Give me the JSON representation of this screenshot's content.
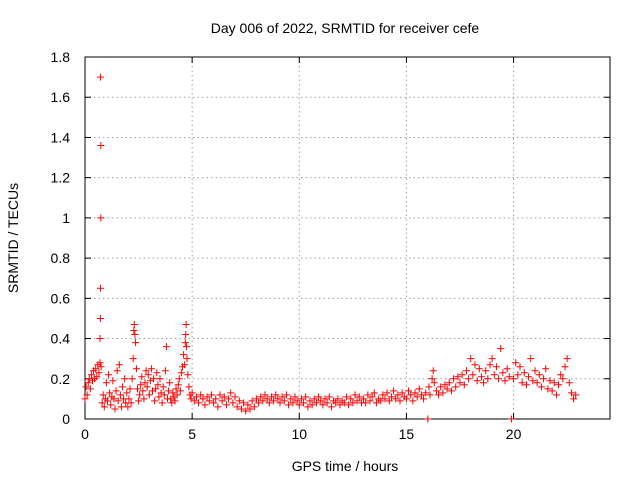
{
  "chart_data": {
    "type": "scatter",
    "title": "Day 006 of 2022, SRMTID for receiver cefe",
    "xlabel": "GPS time / hours",
    "ylabel": "SRMTID / TECUs",
    "xlim": [
      0,
      24.5
    ],
    "ylim": [
      0,
      1.8
    ],
    "x_ticks": [
      "0",
      "5",
      "10",
      "15",
      "20"
    ],
    "x_tick_values": [
      0,
      5,
      10,
      15,
      20
    ],
    "y_ticks": [
      "0",
      "0.2",
      "0.4",
      "0.6",
      "0.8",
      "1",
      "1.2",
      "1.4",
      "1.6",
      "1.8"
    ],
    "y_tick_values": [
      0,
      0.2,
      0.4,
      0.6,
      0.8,
      1.0,
      1.2,
      1.4,
      1.6,
      1.8
    ],
    "grid": true,
    "marker": "plus",
    "color": "#ff0000",
    "series": [
      {
        "name": "SRMTID",
        "points": [
          [
            0.0,
            0.1
          ],
          [
            0.05,
            0.16
          ],
          [
            0.1,
            0.12
          ],
          [
            0.15,
            0.18
          ],
          [
            0.2,
            0.2
          ],
          [
            0.25,
            0.15
          ],
          [
            0.3,
            0.22
          ],
          [
            0.35,
            0.19
          ],
          [
            0.4,
            0.24
          ],
          [
            0.45,
            0.2
          ],
          [
            0.5,
            0.25
          ],
          [
            0.55,
            0.21
          ],
          [
            0.6,
            0.27
          ],
          [
            0.65,
            0.23
          ],
          [
            0.7,
            0.28
          ],
          [
            0.75,
            0.26
          ],
          [
            0.72,
            1.7
          ],
          [
            0.74,
            1.36
          ],
          [
            0.74,
            1.0
          ],
          [
            0.72,
            0.65
          ],
          [
            0.72,
            0.5
          ],
          [
            0.7,
            0.4
          ],
          [
            0.8,
            0.08
          ],
          [
            0.85,
            0.12
          ],
          [
            0.9,
            0.06
          ],
          [
            0.95,
            0.1
          ],
          [
            1.0,
            0.18
          ],
          [
            1.05,
            0.09
          ],
          [
            1.1,
            0.22
          ],
          [
            1.15,
            0.13
          ],
          [
            1.2,
            0.07
          ],
          [
            1.25,
            0.11
          ],
          [
            1.3,
            0.19
          ],
          [
            1.35,
            0.1
          ],
          [
            1.4,
            0.05
          ],
          [
            1.45,
            0.14
          ],
          [
            1.5,
            0.24
          ],
          [
            1.55,
            0.09
          ],
          [
            1.6,
            0.27
          ],
          [
            1.65,
            0.12
          ],
          [
            1.7,
            0.06
          ],
          [
            1.75,
            0.16
          ],
          [
            1.8,
            0.1
          ],
          [
            1.85,
            0.2
          ],
          [
            1.9,
            0.08
          ],
          [
            1.95,
            0.13
          ],
          [
            2.0,
            0.06
          ],
          [
            2.05,
            0.1
          ],
          [
            2.1,
            0.15
          ],
          [
            2.15,
            0.08
          ],
          [
            2.2,
            0.2
          ],
          [
            2.25,
            0.3
          ],
          [
            2.28,
            0.44
          ],
          [
            2.3,
            0.47
          ],
          [
            2.33,
            0.42
          ],
          [
            2.36,
            0.38
          ],
          [
            2.4,
            0.25
          ],
          [
            2.45,
            0.15
          ],
          [
            2.5,
            0.09
          ],
          [
            2.55,
            0.12
          ],
          [
            2.6,
            0.17
          ],
          [
            2.65,
            0.21
          ],
          [
            2.7,
            0.14
          ],
          [
            2.75,
            0.1
          ],
          [
            2.8,
            0.18
          ],
          [
            2.85,
            0.24
          ],
          [
            2.9,
            0.16
          ],
          [
            2.95,
            0.22
          ],
          [
            3.0,
            0.12
          ],
          [
            3.05,
            0.19
          ],
          [
            3.1,
            0.25
          ],
          [
            3.15,
            0.14
          ],
          [
            3.2,
            0.2
          ],
          [
            3.25,
            0.09
          ],
          [
            3.3,
            0.15
          ],
          [
            3.35,
            0.23
          ],
          [
            3.4,
            0.17
          ],
          [
            3.45,
            0.11
          ],
          [
            3.5,
            0.2
          ],
          [
            3.55,
            0.13
          ],
          [
            3.6,
            0.08
          ],
          [
            3.65,
            0.16
          ],
          [
            3.7,
            0.12
          ],
          [
            3.75,
            0.24
          ],
          [
            3.8,
            0.36
          ],
          [
            3.85,
            0.1
          ],
          [
            3.9,
            0.14
          ],
          [
            3.95,
            0.18
          ],
          [
            4.0,
            0.1
          ],
          [
            4.05,
            0.08
          ],
          [
            4.1,
            0.13
          ],
          [
            4.15,
            0.11
          ],
          [
            4.2,
            0.09
          ],
          [
            4.25,
            0.15
          ],
          [
            4.3,
            0.12
          ],
          [
            4.35,
            0.17
          ],
          [
            4.4,
            0.2
          ],
          [
            4.45,
            0.14
          ],
          [
            4.5,
            0.23
          ],
          [
            4.55,
            0.26
          ],
          [
            4.6,
            0.32
          ],
          [
            4.65,
            0.27
          ],
          [
            4.68,
            0.38
          ],
          [
            4.7,
            0.42
          ],
          [
            4.72,
            0.47
          ],
          [
            4.74,
            0.36
          ],
          [
            4.76,
            0.3
          ],
          [
            4.8,
            0.22
          ],
          [
            4.85,
            0.16
          ],
          [
            4.9,
            0.12
          ],
          [
            4.95,
            0.1
          ],
          [
            5.0,
            0.13
          ],
          [
            5.1,
            0.09
          ],
          [
            5.2,
            0.11
          ],
          [
            5.3,
            0.08
          ],
          [
            5.4,
            0.12
          ],
          [
            5.5,
            0.1
          ],
          [
            5.6,
            0.07
          ],
          [
            5.7,
            0.11
          ],
          [
            5.8,
            0.09
          ],
          [
            5.9,
            0.12
          ],
          [
            6.0,
            0.08
          ],
          [
            6.1,
            0.1
          ],
          [
            6.2,
            0.06
          ],
          [
            6.3,
            0.12
          ],
          [
            6.4,
            0.09
          ],
          [
            6.5,
            0.11
          ],
          [
            6.6,
            0.07
          ],
          [
            6.7,
            0.1
          ],
          [
            6.8,
            0.13
          ],
          [
            6.9,
            0.08
          ],
          [
            7.0,
            0.11
          ],
          [
            7.1,
            0.06
          ],
          [
            7.2,
            0.09
          ],
          [
            7.3,
            0.05
          ],
          [
            7.4,
            0.08
          ],
          [
            7.5,
            0.04
          ],
          [
            7.6,
            0.07
          ],
          [
            7.7,
            0.05
          ],
          [
            7.8,
            0.09
          ],
          [
            7.9,
            0.06
          ],
          [
            8.0,
            0.1
          ],
          [
            8.1,
            0.08
          ],
          [
            8.2,
            0.11
          ],
          [
            8.3,
            0.09
          ],
          [
            8.4,
            0.12
          ],
          [
            8.5,
            0.1
          ],
          [
            8.6,
            0.08
          ],
          [
            8.7,
            0.11
          ],
          [
            8.8,
            0.09
          ],
          [
            8.9,
            0.12
          ],
          [
            9.0,
            0.1
          ],
          [
            9.1,
            0.08
          ],
          [
            9.2,
            0.11
          ],
          [
            9.3,
            0.09
          ],
          [
            9.4,
            0.12
          ],
          [
            9.5,
            0.07
          ],
          [
            9.6,
            0.1
          ],
          [
            9.7,
            0.08
          ],
          [
            9.8,
            0.11
          ],
          [
            9.9,
            0.09
          ],
          [
            10.0,
            0.07
          ],
          [
            10.1,
            0.1
          ],
          [
            10.2,
            0.08
          ],
          [
            10.3,
            0.11
          ],
          [
            10.4,
            0.06
          ],
          [
            10.5,
            0.09
          ],
          [
            10.6,
            0.07
          ],
          [
            10.7,
            0.1
          ],
          [
            10.8,
            0.08
          ],
          [
            10.9,
            0.11
          ],
          [
            11.0,
            0.09
          ],
          [
            11.1,
            0.07
          ],
          [
            11.2,
            0.1
          ],
          [
            11.3,
            0.08
          ],
          [
            11.4,
            0.11
          ],
          [
            11.5,
            0.06
          ],
          [
            11.6,
            0.09
          ],
          [
            11.7,
            0.08
          ],
          [
            11.8,
            0.1
          ],
          [
            11.9,
            0.07
          ],
          [
            12.0,
            0.09
          ],
          [
            12.1,
            0.08
          ],
          [
            12.2,
            0.11
          ],
          [
            12.3,
            0.07
          ],
          [
            12.4,
            0.1
          ],
          [
            12.5,
            0.08
          ],
          [
            12.6,
            0.12
          ],
          [
            12.7,
            0.09
          ],
          [
            12.8,
            0.11
          ],
          [
            12.9,
            0.08
          ],
          [
            13.0,
            0.1
          ],
          [
            13.1,
            0.08
          ],
          [
            13.2,
            0.12
          ],
          [
            13.3,
            0.09
          ],
          [
            13.4,
            0.11
          ],
          [
            13.5,
            0.13
          ],
          [
            13.6,
            0.08
          ],
          [
            13.7,
            0.1
          ],
          [
            13.8,
            0.09
          ],
          [
            13.9,
            0.12
          ],
          [
            14.0,
            0.1
          ],
          [
            14.1,
            0.13
          ],
          [
            14.2,
            0.09
          ],
          [
            14.3,
            0.11
          ],
          [
            14.4,
            0.14
          ],
          [
            14.5,
            0.1
          ],
          [
            14.6,
            0.12
          ],
          [
            14.7,
            0.09
          ],
          [
            14.8,
            0.13
          ],
          [
            14.9,
            0.11
          ],
          [
            15.0,
            0.1
          ],
          [
            15.1,
            0.14
          ],
          [
            15.2,
            0.12
          ],
          [
            15.3,
            0.09
          ],
          [
            15.4,
            0.13
          ],
          [
            15.5,
            0.11
          ],
          [
            15.6,
            0.15
          ],
          [
            15.7,
            0.12
          ],
          [
            15.8,
            0.1
          ],
          [
            15.9,
            0.13
          ],
          [
            16.0,
            0.0
          ],
          [
            16.05,
            0.16
          ],
          [
            16.1,
            0.12
          ],
          [
            16.2,
            0.2
          ],
          [
            16.25,
            0.24
          ],
          [
            16.3,
            0.18
          ],
          [
            16.4,
            0.14
          ],
          [
            16.5,
            0.12
          ],
          [
            16.6,
            0.16
          ],
          [
            16.7,
            0.13
          ],
          [
            16.8,
            0.17
          ],
          [
            16.9,
            0.15
          ],
          [
            17.0,
            0.18
          ],
          [
            17.1,
            0.14
          ],
          [
            17.2,
            0.2
          ],
          [
            17.3,
            0.16
          ],
          [
            17.4,
            0.21
          ],
          [
            17.5,
            0.18
          ],
          [
            17.6,
            0.22
          ],
          [
            17.7,
            0.17
          ],
          [
            17.8,
            0.24
          ],
          [
            17.9,
            0.2
          ],
          [
            18.0,
            0.3
          ],
          [
            18.1,
            0.22
          ],
          [
            18.2,
            0.27
          ],
          [
            18.3,
            0.19
          ],
          [
            18.4,
            0.25
          ],
          [
            18.5,
            0.21
          ],
          [
            18.6,
            0.18
          ],
          [
            18.7,
            0.24
          ],
          [
            18.8,
            0.2
          ],
          [
            18.9,
            0.27
          ],
          [
            19.0,
            0.3
          ],
          [
            19.1,
            0.22
          ],
          [
            19.2,
            0.26
          ],
          [
            19.3,
            0.2
          ],
          [
            19.4,
            0.35
          ],
          [
            19.5,
            0.23
          ],
          [
            19.6,
            0.19
          ],
          [
            19.7,
            0.25
          ],
          [
            19.8,
            0.21
          ],
          [
            19.9,
            0.0
          ],
          [
            20.0,
            0.2
          ],
          [
            20.1,
            0.28
          ],
          [
            20.2,
            0.22
          ],
          [
            20.3,
            0.26
          ],
          [
            20.4,
            0.18
          ],
          [
            20.5,
            0.23
          ],
          [
            20.6,
            0.17
          ],
          [
            20.7,
            0.21
          ],
          [
            20.8,
            0.3
          ],
          [
            20.9,
            0.19
          ],
          [
            21.0,
            0.24
          ],
          [
            21.1,
            0.18
          ],
          [
            21.2,
            0.22
          ],
          [
            21.3,
            0.16
          ],
          [
            21.4,
            0.2
          ],
          [
            21.5,
            0.25
          ],
          [
            21.6,
            0.15
          ],
          [
            21.7,
            0.19
          ],
          [
            21.8,
            0.14
          ],
          [
            21.9,
            0.18
          ],
          [
            22.0,
            0.12
          ],
          [
            22.1,
            0.17
          ],
          [
            22.2,
            0.22
          ],
          [
            22.3,
            0.2
          ],
          [
            22.4,
            0.26
          ],
          [
            22.5,
            0.3
          ],
          [
            22.6,
            0.18
          ],
          [
            22.7,
            0.13
          ],
          [
            22.8,
            0.1
          ],
          [
            22.9,
            0.12
          ]
        ]
      }
    ]
  }
}
